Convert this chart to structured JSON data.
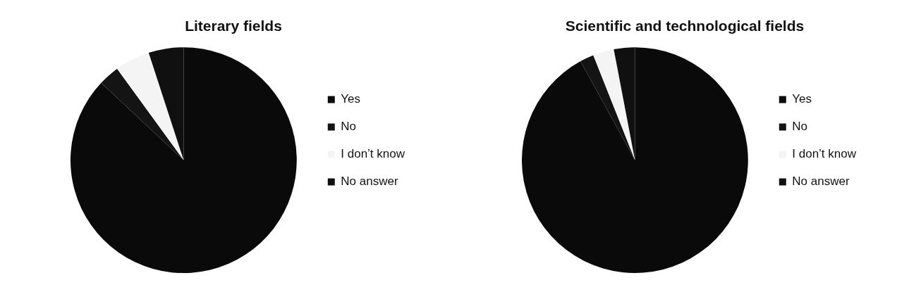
{
  "chart_data": [
    {
      "type": "pie",
      "title": "Literary fields",
      "categories": [
        "Yes",
        "No",
        "I don’t know",
        "No answer"
      ],
      "values": [
        87,
        3,
        5,
        5
      ],
      "colors": [
        "#0a0a0a",
        "#141414",
        "#f4f4f4",
        "#101010"
      ],
      "legend": "right"
    },
    {
      "type": "pie",
      "title": "Scientific and technological fields",
      "categories": [
        "Yes",
        "No",
        "I don’t know",
        "No answer"
      ],
      "values": [
        92,
        2,
        3,
        3
      ],
      "colors": [
        "#0a0a0a",
        "#141414",
        "#f4f4f4",
        "#101010"
      ],
      "legend": "right"
    }
  ]
}
